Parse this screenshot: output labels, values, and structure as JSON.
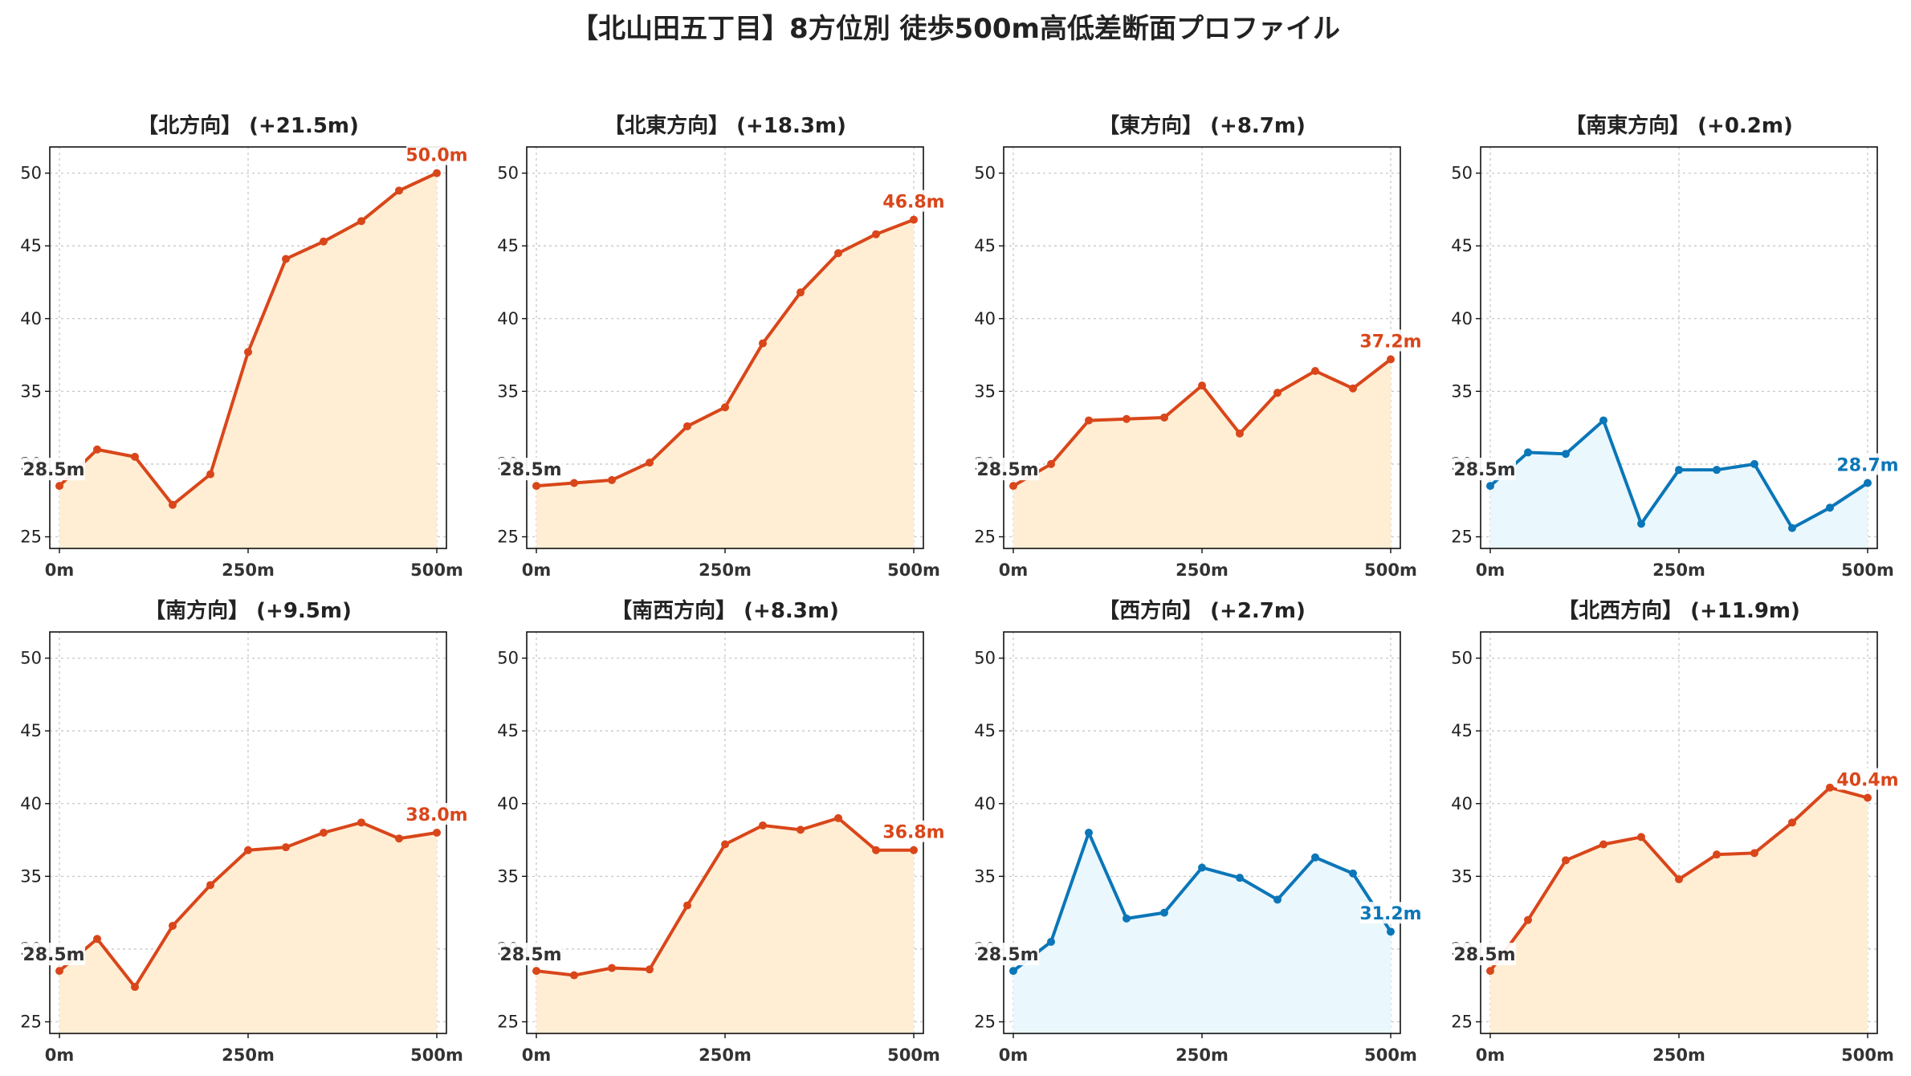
{
  "title": "【北山田五丁目】8方位別 徒歩500m高低差断面プロファイル",
  "colors": {
    "up_line": "#d9461a",
    "up_fill": "#ffeed4",
    "flat_line": "#0b76b8",
    "flat_fill": "#eaf7fd",
    "label_box": "#ffffff"
  },
  "chart_data": [
    {
      "type": "area",
      "title": "【北方向】 (+21.5m)",
      "trend": "up",
      "x": [
        0,
        50,
        100,
        150,
        200,
        250,
        300,
        350,
        400,
        450,
        500
      ],
      "y": [
        28.5,
        31.0,
        30.5,
        27.2,
        29.3,
        37.7,
        44.1,
        45.3,
        46.7,
        48.8,
        50.0
      ],
      "ylim": [
        24.2,
        51.8
      ],
      "yticks": [
        25,
        30,
        35,
        40,
        45,
        50
      ],
      "xticks": [
        "0m",
        "250m",
        "500m"
      ],
      "start_label": "28.5m",
      "end_label": "50.0m"
    },
    {
      "type": "area",
      "title": "【北東方向】 (+18.3m)",
      "trend": "up",
      "x": [
        0,
        50,
        100,
        150,
        200,
        250,
        300,
        350,
        400,
        450,
        500
      ],
      "y": [
        28.5,
        28.7,
        28.9,
        30.1,
        32.6,
        33.9,
        38.3,
        41.8,
        44.5,
        45.8,
        46.8
      ],
      "ylim": [
        24.2,
        51.8
      ],
      "yticks": [
        25,
        30,
        35,
        40,
        45,
        50
      ],
      "xticks": [
        "0m",
        "250m",
        "500m"
      ],
      "start_label": "28.5m",
      "end_label": "46.8m"
    },
    {
      "type": "area",
      "title": "【東方向】 (+8.7m)",
      "trend": "up",
      "x": [
        0,
        50,
        100,
        150,
        200,
        250,
        300,
        350,
        400,
        450,
        500
      ],
      "y": [
        28.5,
        30.0,
        33.0,
        33.1,
        33.2,
        35.4,
        32.1,
        34.9,
        36.4,
        35.2,
        37.2
      ],
      "ylim": [
        24.2,
        51.8
      ],
      "yticks": [
        25,
        30,
        35,
        40,
        45,
        50
      ],
      "xticks": [
        "0m",
        "250m",
        "500m"
      ],
      "start_label": "28.5m",
      "end_label": "37.2m"
    },
    {
      "type": "area",
      "title": "【南東方向】 (+0.2m)",
      "trend": "flat",
      "x": [
        0,
        50,
        100,
        150,
        200,
        250,
        300,
        350,
        400,
        450,
        500
      ],
      "y": [
        28.5,
        30.8,
        30.7,
        33.0,
        25.9,
        29.6,
        29.6,
        30.0,
        25.6,
        27.0,
        28.7
      ],
      "ylim": [
        24.2,
        51.8
      ],
      "yticks": [
        25,
        30,
        35,
        40,
        45,
        50
      ],
      "xticks": [
        "0m",
        "250m",
        "500m"
      ],
      "start_label": "28.5m",
      "end_label": "28.7m"
    },
    {
      "type": "area",
      "title": "【南方向】 (+9.5m)",
      "trend": "up",
      "x": [
        0,
        50,
        100,
        150,
        200,
        250,
        300,
        350,
        400,
        450,
        500
      ],
      "y": [
        28.5,
        30.7,
        27.4,
        31.6,
        34.4,
        36.8,
        37.0,
        38.0,
        38.7,
        37.6,
        38.0
      ],
      "ylim": [
        24.2,
        51.8
      ],
      "yticks": [
        25,
        30,
        35,
        40,
        45,
        50
      ],
      "xticks": [
        "0m",
        "250m",
        "500m"
      ],
      "start_label": "28.5m",
      "end_label": "38.0m"
    },
    {
      "type": "area",
      "title": "【南西方向】 (+8.3m)",
      "trend": "up",
      "x": [
        0,
        50,
        100,
        150,
        200,
        250,
        300,
        350,
        400,
        450,
        500
      ],
      "y": [
        28.5,
        28.2,
        28.7,
        28.6,
        33.0,
        37.2,
        38.5,
        38.2,
        39.0,
        36.8,
        36.8
      ],
      "ylim": [
        24.2,
        51.8
      ],
      "yticks": [
        25,
        30,
        35,
        40,
        45,
        50
      ],
      "xticks": [
        "0m",
        "250m",
        "500m"
      ],
      "start_label": "28.5m",
      "end_label": "36.8m"
    },
    {
      "type": "area",
      "title": "【西方向】 (+2.7m)",
      "trend": "flat",
      "x": [
        0,
        50,
        100,
        150,
        200,
        250,
        300,
        350,
        400,
        450,
        500
      ],
      "y": [
        28.5,
        30.5,
        38.0,
        32.1,
        32.5,
        35.6,
        34.9,
        33.4,
        36.3,
        35.2,
        31.2
      ],
      "ylim": [
        24.2,
        51.8
      ],
      "yticks": [
        25,
        30,
        35,
        40,
        45,
        50
      ],
      "xticks": [
        "0m",
        "250m",
        "500m"
      ],
      "start_label": "28.5m",
      "end_label": "31.2m"
    },
    {
      "type": "area",
      "title": "【北西方向】 (+11.9m)",
      "trend": "up",
      "x": [
        0,
        50,
        100,
        150,
        200,
        250,
        300,
        350,
        400,
        450,
        500
      ],
      "y": [
        28.5,
        32.0,
        36.1,
        37.2,
        37.7,
        34.8,
        36.5,
        36.6,
        38.7,
        41.1,
        40.4
      ],
      "ylim": [
        24.2,
        51.8
      ],
      "yticks": [
        25,
        30,
        35,
        40,
        45,
        50
      ],
      "xticks": [
        "0m",
        "250m",
        "500m"
      ],
      "start_label": "28.5m",
      "end_label": "40.4m"
    }
  ]
}
